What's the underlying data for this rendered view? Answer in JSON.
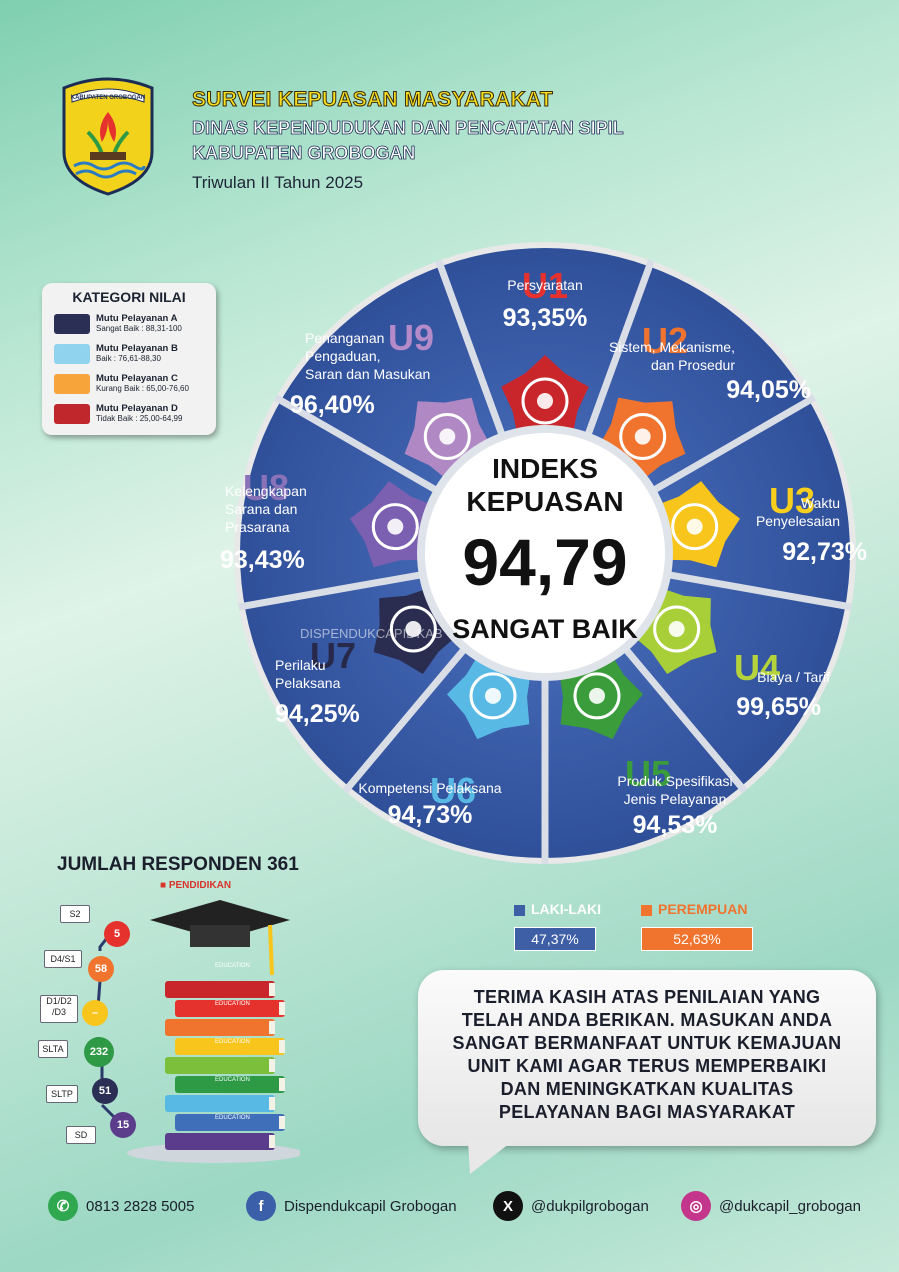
{
  "header": {
    "title": "SURVEI KEPUASAN MASYARAKAT",
    "line2": "DINAS KEPENDUDUKAN DAN PENCATATAN SIPIL",
    "line3": "KABUPATEN GROBOGAN",
    "period": "Triwulan II Tahun 2025",
    "logo_text": "KABUPATEN GROBOGAN"
  },
  "legend": {
    "title": "KATEGORI NILAI",
    "items": [
      {
        "name": "Mutu Pelayanan A",
        "range": "Sangat Baik : 88,31-100",
        "color": "#2b2f55"
      },
      {
        "name": "Mutu Pelayanan B",
        "range": "Baik : 76,61-88,30",
        "color": "#8fd3ef"
      },
      {
        "name": "Mutu Pelayanan C",
        "range": "Kurang Baik : 65,00-76,60",
        "color": "#f7a43a"
      },
      {
        "name": "Mutu Pelayanan D",
        "range": "Tidak Baik : 25,00-64,99",
        "color": "#c0272d"
      }
    ]
  },
  "index": {
    "line1": "INDEKS",
    "line2": "KEPUASAN",
    "value": "94,79",
    "category": "SANGAT BAIK",
    "watermark": "DISPENDUKCAPIL KAB"
  },
  "units": [
    {
      "code": "U1",
      "label": [
        "Persyaratan"
      ],
      "pct": "93,35%",
      "code_color": "#e8312c",
      "icon_color": "#c8262b",
      "icon": "clipboard-icon"
    },
    {
      "code": "U2",
      "label": [
        "Sistem, Mekanisme,",
        "dan Prosedur"
      ],
      "pct": "94,05%",
      "code_color": "#f0742e",
      "icon_color": "#f0742e",
      "icon": "gear-icon"
    },
    {
      "code": "U3",
      "label": [
        "Waktu",
        "Penyelesaian"
      ],
      "pct": "92,73%",
      "code_color": "#f8cf1c",
      "icon_color": "#f8c51c",
      "icon": "timer-icon"
    },
    {
      "code": "U4",
      "label": [
        "Biaya / Tarif"
      ],
      "pct": "99,65%",
      "code_color": "#b5d33a",
      "icon_color": "#a9cf38",
      "icon": "money-hand-icon"
    },
    {
      "code": "U5",
      "label": [
        "Produk Spesifikasi",
        "Jenis Pelayanan"
      ],
      "pct": "94,53%",
      "code_color": "#3a9c3a",
      "icon_color": "#3a9c3a",
      "icon": "document-icon"
    },
    {
      "code": "U6",
      "label": [
        "Kompetensi Pelaksana"
      ],
      "pct": "94,73%",
      "code_color": "#58b9e5",
      "icon_color": "#58b9e5",
      "icon": "person-icon"
    },
    {
      "code": "U7",
      "label": [
        "Perilaku",
        "Pelaksana"
      ],
      "pct": "94,25%",
      "code_color": "#27284a",
      "icon_color": "#2a2c50",
      "icon": "handshake-icon"
    },
    {
      "code": "U8",
      "label": [
        "Kelengkapan",
        "Sarana dan",
        "Prasarana"
      ],
      "pct": "93,43%",
      "code_color": "#8a72b8",
      "icon_color": "#7b5fb0",
      "icon": "building-icon"
    },
    {
      "code": "U9",
      "label": [
        "Penanganan",
        "Pengaduan,",
        "Saran dan Masukan"
      ],
      "pct": "96,40%",
      "code_color": "#b48ac8",
      "icon_color": "#b088c4",
      "icon": "headset-icon"
    }
  ],
  "respondents": {
    "title": "JUMLAH RESPONDEN 361",
    "subtitle": "PENDIDIKAN",
    "education": [
      {
        "level": "S2",
        "count": "5",
        "color": "#e5322d"
      },
      {
        "level": "D4/S1",
        "count": "58",
        "color": "#f0742e"
      },
      {
        "level": "D1/D2 /D3",
        "count": "–",
        "color": "#f8c51c"
      },
      {
        "level": "SLTA",
        "count": "232",
        "color": "#2f9a45"
      },
      {
        "level": "SLTP",
        "count": "51",
        "color": "#2b2f55"
      },
      {
        "level": "SD",
        "count": "15",
        "color": "#5b3d8c"
      }
    ],
    "books": [
      "EDUCATION",
      "EDUCATION",
      "EDUCATION",
      "EDUCATION",
      "EDUCATION"
    ]
  },
  "gender": {
    "male_label": "LAKI-LAKI",
    "male_pct": "47,37%",
    "male_color": "#3e5fa6",
    "female_label": "PEREMPUAN",
    "female_pct": "52,63%",
    "female_color": "#f0742e"
  },
  "message": [
    "TERIMA KASIH ATAS PENILAIAN YANG",
    "TELAH ANDA BERIKAN. MASUKAN ANDA",
    "SANGAT BERMANFAAT UNTUK KEMAJUAN",
    "UNIT KAMI AGAR TERUS MEMPERBAIKI",
    "DAN MENINGKATKAN KUALITAS",
    "PELAYANAN BAGI MASYARAKAT"
  ],
  "footer": [
    {
      "icon": "whatsapp-icon",
      "text": "0813 2828 5005",
      "color": "#2fa84f"
    },
    {
      "icon": "facebook-icon",
      "text": "Dispendukcapil Grobogan",
      "color": "#3b5fa8"
    },
    {
      "icon": "x-icon",
      "text": "@dukpilgrobogan",
      "color": "#111111"
    },
    {
      "icon": "instagram-icon",
      "text": "@dukcapil_grobogan",
      "color": "#c4368b"
    }
  ]
}
